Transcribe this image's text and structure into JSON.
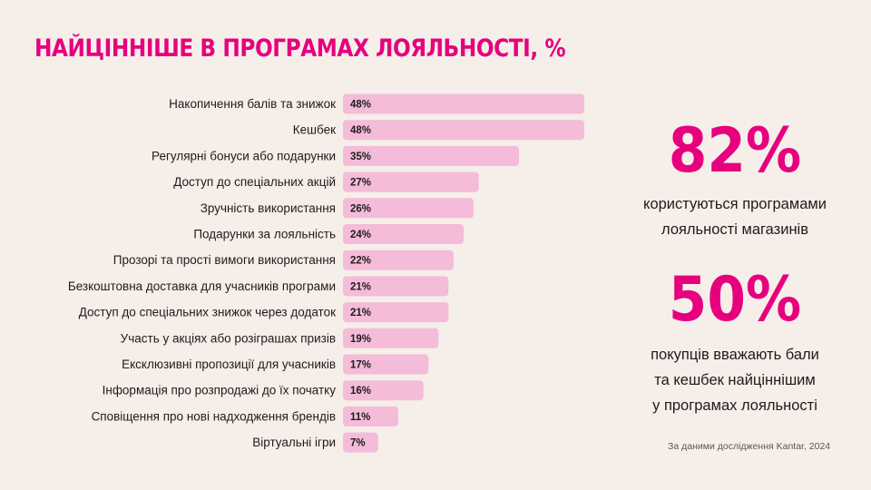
{
  "title": "НАЙЦІННІШЕ В ПРОГРАМАХ ЛОЯЛЬНОСТІ, %",
  "colors": {
    "accent": "#e6007e",
    "bar": "#f4bcd8",
    "text": "#1f1b1d",
    "background": "#f5eee9"
  },
  "chart_data": {
    "type": "bar",
    "orientation": "horizontal",
    "title": "НАЙЦІННІШЕ В ПРОГРАМАХ ЛОЯЛЬНОСТІ, %",
    "xlim": [
      0,
      48
    ],
    "categories": [
      "Накопичення балів та знижок",
      "Кешбек",
      "Регулярні бонуси або подарунки",
      "Доступ до спеціальних акцій",
      "Зручність використання",
      "Подарунки за лояльність",
      "Прозорі та прості вимоги використання",
      "Безкоштовна доставка для учасників програми",
      "Доступ до спеціальних знижок через додаток",
      "Участь у акціях або розіграшах призів",
      "Ексклюзивні пропозиції для учасників",
      "Інформація про розпродажі до їх початку",
      "Сповіщення про нові надходження брендів",
      "Віртуальні ігри"
    ],
    "values": [
      48,
      48,
      35,
      27,
      26,
      24,
      22,
      21,
      21,
      19,
      17,
      16,
      11,
      7
    ],
    "value_labels": [
      "48%",
      "48%",
      "35%",
      "27%",
      "26%",
      "24%",
      "22%",
      "21%",
      "21%",
      "19%",
      "17%",
      "16%",
      "11%",
      "7%"
    ]
  },
  "stats": [
    {
      "value": "82%",
      "caption_lines": [
        "користуються програмами",
        "лояльності магазинів"
      ]
    },
    {
      "value": "50%",
      "caption_lines": [
        "покупців вважають бали",
        "та кешбек найціннішим",
        "у програмах лояльності"
      ]
    }
  ],
  "source": "За даними дослідження Kantar, 2024"
}
